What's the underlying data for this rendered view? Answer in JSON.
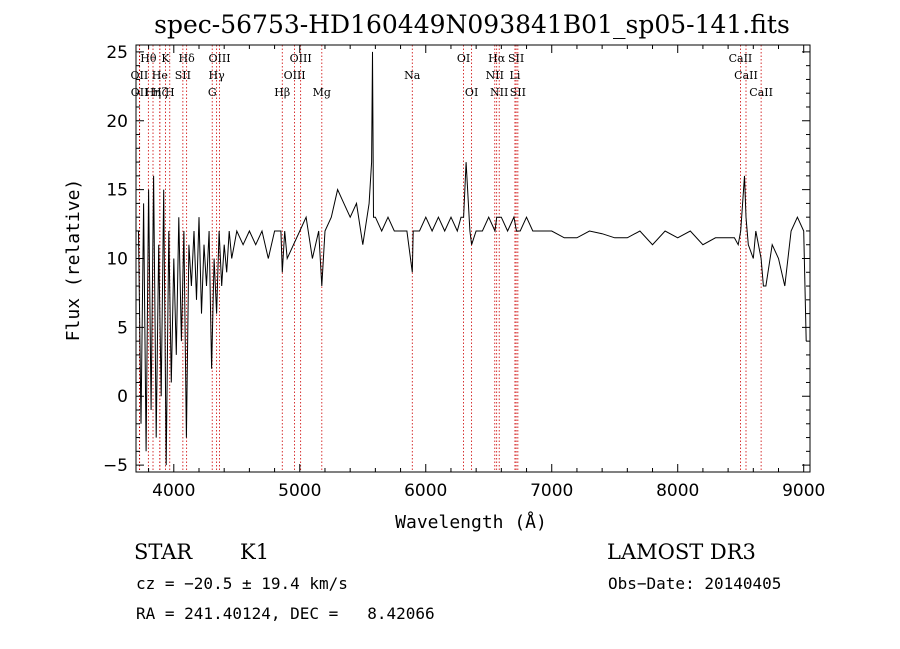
{
  "chart_data": {
    "type": "line",
    "title": "spec-56753-HD160449N093841B01_sp05-141.fits",
    "xlabel": "Wavelength (Å)",
    "ylabel": "Flux (relative)",
    "xlim": [
      3700,
      9050
    ],
    "ylim": [
      -5.5,
      25.5
    ],
    "xticks": [
      4000,
      5000,
      6000,
      7000,
      8000,
      9000
    ],
    "yticks": [
      -5,
      0,
      5,
      10,
      15,
      20,
      25
    ],
    "line_color": "#000000",
    "marker_color": "#cc0000",
    "grid": false,
    "legend": "none",
    "series": [
      {
        "name": "flux",
        "x": [
          3720,
          3740,
          3760,
          3780,
          3800,
          3820,
          3840,
          3860,
          3880,
          3900,
          3920,
          3940,
          3960,
          3980,
          4000,
          4020,
          4040,
          4060,
          4080,
          4100,
          4120,
          4140,
          4160,
          4180,
          4200,
          4220,
          4240,
          4260,
          4280,
          4300,
          4320,
          4340,
          4360,
          4380,
          4400,
          4420,
          4440,
          4460,
          4480,
          4500,
          4550,
          4600,
          4650,
          4700,
          4750,
          4800,
          4850,
          4861,
          4880,
          4900,
          4950,
          5000,
          5050,
          5100,
          5150,
          5175,
          5200,
          5250,
          5300,
          5350,
          5400,
          5450,
          5500,
          5550,
          5570,
          5577,
          5585,
          5600,
          5650,
          5700,
          5750,
          5800,
          5850,
          5893,
          5900,
          5950,
          6000,
          6050,
          6100,
          6150,
          6200,
          6250,
          6280,
          6300,
          6320,
          6350,
          6364,
          6400,
          6450,
          6500,
          6550,
          6563,
          6600,
          6650,
          6700,
          6720,
          6750,
          6800,
          6850,
          6900,
          6950,
          7000,
          7100,
          7200,
          7300,
          7400,
          7500,
          7600,
          7700,
          7800,
          7900,
          8000,
          8100,
          8200,
          8300,
          8400,
          8450,
          8480,
          8500,
          8530,
          8542,
          8560,
          8600,
          8620,
          8662,
          8680,
          8700,
          8750,
          8800,
          8850,
          8900,
          8950,
          9000,
          9020
        ],
        "y": [
          12,
          -2,
          14,
          -4,
          15,
          -1,
          16,
          -3,
          11,
          0,
          15,
          -5,
          12,
          1,
          10,
          3,
          13,
          4,
          12,
          -3,
          11,
          8,
          12,
          7,
          13,
          6,
          11,
          8,
          12,
          2,
          10,
          6,
          12,
          8,
          11,
          9,
          12,
          10,
          11,
          12,
          11,
          12,
          11,
          12,
          10,
          12,
          12,
          9,
          12,
          10,
          11,
          12,
          13,
          10,
          12,
          8,
          12,
          13,
          15,
          14,
          13,
          14,
          11,
          14,
          17,
          25,
          13,
          13,
          12,
          13,
          12,
          12,
          12,
          9,
          12,
          12,
          13,
          12,
          13,
          12,
          13,
          12,
          13,
          13,
          17,
          12,
          11,
          12,
          12,
          13,
          12,
          13,
          13,
          12,
          13,
          12,
          12,
          13,
          12,
          12,
          12,
          12,
          11.5,
          11.5,
          12,
          11.8,
          11.5,
          11.5,
          12,
          11,
          12,
          11.5,
          12,
          11,
          11.5,
          11.5,
          11.5,
          11,
          12,
          16,
          13,
          11,
          10,
          12,
          10,
          8,
          8,
          11,
          10,
          8,
          12,
          13,
          12,
          4
        ]
      }
    ],
    "lines": [
      {
        "name": "Hθ",
        "x": 3798,
        "row": 0
      },
      {
        "name": "OII",
        "x": 3727,
        "row": 1
      },
      {
        "name": "OII",
        "x": 3729,
        "row": 2
      },
      {
        "name": "Hζ",
        "x": 3889,
        "row": 2
      },
      {
        "name": "Hη",
        "x": 3835,
        "row": 2
      },
      {
        "name": "He",
        "x": 3889,
        "row": 1
      },
      {
        "name": "K",
        "x": 3934,
        "row": 0
      },
      {
        "name": "H",
        "x": 3968,
        "row": 2
      },
      {
        "name": "Hδ",
        "x": 4102,
        "row": 0
      },
      {
        "name": "SII",
        "x": 4072,
        "row": 1
      },
      {
        "name": "OIII",
        "x": 4363,
        "row": 0
      },
      {
        "name": "Hγ",
        "x": 4340,
        "row": 1
      },
      {
        "name": "G",
        "x": 4305,
        "row": 2
      },
      {
        "name": "Hβ",
        "x": 4861,
        "row": 2
      },
      {
        "name": "OIII",
        "x": 5007,
        "row": 0
      },
      {
        "name": "OIII",
        "x": 4959,
        "row": 1
      },
      {
        "name": "Mg",
        "x": 5175,
        "row": 2
      },
      {
        "name": "Na",
        "x": 5893,
        "row": 1
      },
      {
        "name": "OI",
        "x": 6300,
        "row": 0
      },
      {
        "name": "OI",
        "x": 6364,
        "row": 2
      },
      {
        "name": "Hα",
        "x": 6563,
        "row": 0
      },
      {
        "name": "NII",
        "x": 6548,
        "row": 1
      },
      {
        "name": "NII",
        "x": 6583,
        "row": 2
      },
      {
        "name": "SII",
        "x": 6717,
        "row": 0
      },
      {
        "name": "Li",
        "x": 6708,
        "row": 1
      },
      {
        "name": "SII",
        "x": 6731,
        "row": 2
      },
      {
        "name": "CaII",
        "x": 8498,
        "row": 0
      },
      {
        "name": "CaII",
        "x": 8542,
        "row": 1
      },
      {
        "name": "CaII",
        "x": 8662,
        "row": 2
      }
    ]
  },
  "info": {
    "object_class": "STAR",
    "subclass": "K1",
    "survey": "LAMOST DR3",
    "cz": "cz = −20.5 ± 19.4 km/s",
    "obs_date": "Obs−Date: 20140405",
    "coords": "RA = 241.40124, DEC =   8.42066"
  }
}
